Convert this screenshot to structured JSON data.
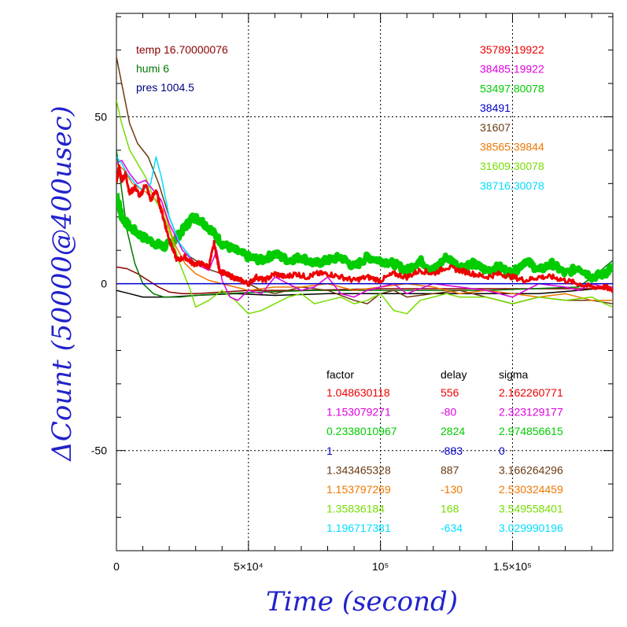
{
  "chart_data": {
    "type": "line",
    "xlabel": "Time (second)",
    "ylabel": "ΔCount (50000@400usec)",
    "xlim": [
      0,
      188000
    ],
    "ylim": [
      -80,
      81
    ],
    "grid": true,
    "x_ticks": [
      {
        "value": 0,
        "label": "0"
      },
      {
        "value": 50000,
        "label": "5×10⁴"
      },
      {
        "value": 100000,
        "label": "10⁵"
      },
      {
        "value": 150000,
        "label": "1.5×10⁵"
      }
    ],
    "y_ticks": [
      {
        "value": 50,
        "label": "50"
      },
      {
        "value": 0,
        "label": "0"
      },
      {
        "value": -50,
        "label": "-50"
      }
    ],
    "env_labels": [
      {
        "text": "temp 16.70000076",
        "color": "#8b0000"
      },
      {
        "text": "humi 6",
        "color": "#007700"
      },
      {
        "text": "pres 1004.5",
        "color": "#000080"
      }
    ],
    "legend_values": [
      {
        "text": "35789.19922",
        "color": "#ee0000"
      },
      {
        "text": "38485.19922",
        "color": "#dd00dd"
      },
      {
        "text": "53497.80078",
        "color": "#00cc00"
      },
      {
        "text": "38491",
        "color": "#0000cc"
      },
      {
        "text": "31607",
        "color": "#6b3a10"
      },
      {
        "text": "38565.39844",
        "color": "#ee7700"
      },
      {
        "text": "31609.30078",
        "color": "#77dd00"
      },
      {
        "text": "38716.30078",
        "color": "#00ddff"
      }
    ],
    "table": {
      "headers": [
        "factor",
        "delay",
        "sigma"
      ],
      "rows": [
        {
          "factor": "1.048630118",
          "delay": "556",
          "sigma": "2.162260771",
          "color": "#ee0000"
        },
        {
          "factor": "1.153079271",
          "delay": "-80",
          "sigma": "2.323129177",
          "color": "#dd00dd"
        },
        {
          "factor": "0.2338010967",
          "delay": "2824",
          "sigma": "2.974856615",
          "color": "#00cc00"
        },
        {
          "factor": "1",
          "delay": "-883",
          "sigma": "0",
          "color": "#0000cc"
        },
        {
          "factor": "1.343465328",
          "delay": "887",
          "sigma": "3.166264296",
          "color": "#6b3a10"
        },
        {
          "factor": "1.153797269",
          "delay": "-130",
          "sigma": "2.530324459",
          "color": "#ee7700"
        },
        {
          "factor": "1.35836184",
          "delay": "168",
          "sigma": "3.549558401",
          "color": "#77dd00"
        },
        {
          "factor": "1.196717381",
          "delay": "-634",
          "sigma": "3.029990196",
          "color": "#00ddff"
        }
      ]
    },
    "series": [
      {
        "color": "#000000",
        "x": [
          0,
          5000,
          10000,
          20000,
          30000,
          45000,
          60000,
          80000,
          100000,
          120000,
          140000,
          160000,
          175000,
          188000
        ],
        "y": [
          -2,
          -3,
          -4,
          -4,
          -3.5,
          -3,
          -3.5,
          -3,
          -3,
          -3,
          -3,
          -3,
          -2,
          -1
        ]
      },
      {
        "color": "#8b0000",
        "x": [
          0,
          4000,
          8000,
          12000,
          16000,
          20000,
          25000,
          30000,
          40000,
          50000,
          70000,
          100000,
          140000,
          188000
        ],
        "y": [
          5,
          4.5,
          3,
          1,
          -1,
          -2.5,
          -3,
          -3,
          -2.5,
          -2,
          -2,
          -1.5,
          -1.5,
          -1.5
        ]
      },
      {
        "color": "#007700",
        "x": [
          0,
          2000,
          4000,
          7000,
          10000,
          14000,
          18000,
          24000,
          30000,
          40000,
          55000,
          75000,
          100000,
          140000,
          175000,
          182000,
          188000
        ],
        "y": [
          40,
          28,
          16,
          6,
          0,
          -3,
          -4,
          -4,
          -3.5,
          -3,
          -2.5,
          -2,
          -2,
          -2,
          -1,
          3,
          7
        ]
      },
      {
        "color": "#00cc00",
        "width": 7,
        "jitter": 2.2,
        "x": [
          0,
          2000,
          5000,
          10000,
          15000,
          18000,
          22000,
          26000,
          29000,
          32000,
          36000,
          40000,
          45000,
          50000,
          55000,
          60000,
          65000,
          70000,
          75000,
          80000,
          85000,
          90000,
          95000,
          100000,
          105000,
          110000,
          115000,
          120000,
          125000,
          130000,
          135000,
          140000,
          145000,
          150000,
          155000,
          160000,
          165000,
          170000,
          175000,
          180000,
          185000,
          188000
        ],
        "y": [
          27,
          20,
          17,
          14,
          12,
          11,
          13,
          17,
          20,
          19,
          16,
          12,
          10,
          8,
          7,
          9,
          7,
          8,
          6,
          7,
          8,
          5,
          8,
          7,
          6,
          4,
          7,
          4,
          8,
          5,
          6,
          4,
          5,
          3,
          7,
          4,
          6,
          3,
          5,
          2,
          3,
          5
        ]
      },
      {
        "color": "#6b3a10",
        "x": [
          0,
          2000,
          5000,
          8000,
          12000,
          16000,
          20000,
          24000,
          28000,
          32000,
          36000,
          40000,
          45000,
          50000,
          55000,
          60000,
          70000,
          80000,
          90000,
          95000,
          100000,
          105000,
          110000,
          120000,
          130000,
          140000,
          150000,
          160000,
          170000,
          180000,
          188000
        ],
        "y": [
          68,
          60,
          48,
          42,
          38,
          30,
          20,
          12,
          8,
          6,
          4,
          3,
          1,
          0,
          -2,
          -3,
          -1,
          -2,
          -5,
          -6,
          -3,
          -2,
          -4,
          -3,
          -2,
          -4,
          -6,
          -4,
          -5,
          -5,
          -6
        ]
      },
      {
        "color": "#ee7700",
        "x": [
          0,
          3000,
          6000,
          10000,
          14000,
          18000,
          22000,
          26000,
          30000,
          35000,
          40000,
          45000,
          50000,
          60000,
          70000,
          80000,
          90000,
          100000,
          110000,
          120000,
          130000,
          140000,
          150000,
          160000,
          170000,
          180000,
          188000
        ],
        "y": [
          36,
          34,
          30,
          28,
          26,
          22,
          12,
          6,
          3,
          1,
          0,
          -1,
          -2,
          -1,
          -1,
          0,
          -2,
          -1,
          0,
          -1,
          -3,
          -2,
          -3,
          -4,
          -3,
          -5,
          -5
        ]
      },
      {
        "color": "#77dd00",
        "x": [
          0,
          2000,
          5000,
          8000,
          11000,
          14000,
          17000,
          20000,
          24000,
          28000,
          30000,
          35000,
          40000,
          45000,
          50000,
          55000,
          60000,
          65000,
          70000,
          75000,
          80000,
          85000,
          90000,
          95000,
          100000,
          105000,
          110000,
          115000,
          120000,
          125000,
          130000,
          140000,
          150000,
          160000,
          170000,
          180000,
          185000,
          188000
        ],
        "y": [
          55,
          48,
          40,
          36,
          32,
          26,
          22,
          16,
          6,
          -2,
          -7,
          -5,
          -2,
          -5,
          -9,
          -8,
          -6,
          -4,
          -3,
          -6,
          -5,
          -4,
          -6,
          -5,
          -3,
          -8,
          -9,
          -5,
          -4,
          -3,
          -4,
          -4,
          -6,
          -4,
          -5,
          -4,
          -6,
          -7
        ]
      },
      {
        "color": "#dd00dd",
        "x": [
          0,
          2000,
          5000,
          8000,
          11000,
          14000,
          17000,
          20000,
          25000,
          30000,
          35000,
          38000,
          40000,
          43000,
          46000,
          50000,
          55000,
          60000,
          65000,
          70000,
          75000,
          80000,
          85000,
          90000,
          95000,
          100000,
          105000,
          110000,
          120000,
          130000,
          140000,
          150000,
          160000,
          170000,
          175000,
          180000,
          185000,
          188000
        ],
        "y": [
          36,
          37,
          33,
          30,
          31,
          28,
          25,
          18,
          10,
          6,
          4,
          10,
          1,
          -4,
          -5,
          -2,
          -3,
          2,
          0,
          -2,
          -1,
          2,
          -3,
          -4,
          -2,
          -1,
          0,
          -3,
          0,
          -1,
          -2,
          -4,
          0,
          -1,
          -2,
          0,
          -1,
          -1
        ]
      },
      {
        "color": "#00ddff",
        "x": [
          0,
          2000,
          4000,
          7000,
          10000,
          13000,
          15000,
          17000,
          20000,
          24000,
          28000
        ],
        "y": [
          38,
          36,
          33,
          30,
          28,
          30,
          38,
          32,
          20,
          12,
          8
        ]
      },
      {
        "color": "#0000cc",
        "x": [
          0,
          188000
        ],
        "y": [
          0,
          0
        ]
      },
      {
        "color": "#ee0000",
        "width": 3,
        "jitter": 1.6,
        "x": [
          0,
          1000,
          2000,
          3500,
          5000,
          7000,
          9000,
          11000,
          13000,
          15000,
          17000,
          19000,
          21000,
          23000,
          26000,
          29000,
          32000,
          35000,
          37000,
          39000,
          41000,
          44000,
          47000,
          50000,
          53000,
          56000,
          60000,
          64000,
          68000,
          72000,
          76000,
          80000,
          85000,
          90000,
          95000,
          100000,
          105000,
          110000,
          115000,
          120000,
          125000,
          130000,
          135000,
          140000,
          145000,
          150000,
          155000,
          160000,
          165000,
          170000,
          175000,
          180000,
          185000,
          188000
        ],
        "y": [
          30,
          35,
          31,
          33,
          27,
          29,
          26,
          30,
          25,
          28,
          22,
          16,
          11,
          7,
          8,
          6,
          6,
          5,
          12,
          4,
          3,
          2,
          1,
          0,
          2,
          1,
          3,
          2,
          3,
          2,
          3,
          3,
          2,
          1,
          2,
          1,
          3,
          2,
          4,
          3,
          5,
          4,
          3,
          2,
          3,
          2,
          1,
          2,
          2,
          1,
          0,
          -1,
          -1,
          -2
        ]
      }
    ]
  }
}
